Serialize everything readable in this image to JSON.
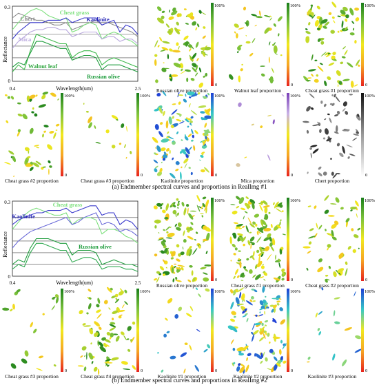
{
  "figure": {
    "caption_a": "(a) Endmember spectral curves and proportions in RealImg #1",
    "caption_b": "(b) Endmember spectral curves and proportions in RealImg #2"
  },
  "chart_data": [
    {
      "type": "line",
      "panel": "a",
      "ylabel": "Reflectance",
      "xlabel": "Wavelength(um)",
      "xlim": [
        0.4,
        2.5
      ],
      "ylim": [
        0,
        0.32
      ],
      "x_ticks": [
        "0.4",
        "2.5"
      ],
      "y_ticks": [
        "0",
        "0.3"
      ],
      "grid": "horizontal",
      "x": [
        0.4,
        0.5,
        0.6,
        0.7,
        0.8,
        0.9,
        1.0,
        1.1,
        1.2,
        1.3,
        1.4,
        1.5,
        1.6,
        1.7,
        1.8,
        1.9,
        2.0,
        2.1,
        2.2,
        2.3,
        2.4,
        2.5
      ],
      "series": [
        {
          "name": "Chert",
          "color": "#8c8c8c",
          "values": [
            0.27,
            0.29,
            0.28,
            0.27,
            0.26,
            0.26,
            0.25,
            0.24,
            0.24,
            0.25,
            0.22,
            0.23,
            0.24,
            0.25,
            0.26,
            0.24,
            0.25,
            0.24,
            0.23,
            0.22,
            0.21,
            0.19
          ]
        },
        {
          "name": "Cheat grass",
          "color": "#7ee07e",
          "values": [
            0.22,
            0.25,
            0.28,
            0.3,
            0.31,
            0.3,
            0.28,
            0.27,
            0.26,
            0.27,
            0.21,
            0.22,
            0.24,
            0.25,
            0.24,
            0.18,
            0.2,
            0.21,
            0.2,
            0.18,
            0.17,
            0.15
          ]
        },
        {
          "name": "Kaolinite",
          "color": "#3a3acc",
          "values": [
            0.18,
            0.21,
            0.23,
            0.25,
            0.25,
            0.25,
            0.26,
            0.26,
            0.26,
            0.27,
            0.25,
            0.26,
            0.27,
            0.27,
            0.27,
            0.24,
            0.25,
            0.26,
            0.21,
            0.24,
            0.23,
            0.2
          ]
        },
        {
          "name": "Mica",
          "color": "#b7a6dd",
          "values": [
            0.14,
            0.17,
            0.19,
            0.21,
            0.22,
            0.22,
            0.23,
            0.23,
            0.22,
            0.22,
            0.19,
            0.2,
            0.21,
            0.21,
            0.21,
            0.18,
            0.19,
            0.19,
            0.17,
            0.18,
            0.18,
            0.16
          ]
        },
        {
          "name": "Walnut leaf",
          "color": "#3cb84a",
          "values": [
            0.04,
            0.07,
            0.05,
            0.13,
            0.2,
            0.19,
            0.18,
            0.17,
            0.16,
            0.16,
            0.1,
            0.12,
            0.13,
            0.13,
            0.12,
            0.07,
            0.09,
            0.1,
            0.09,
            0.08,
            0.07,
            0.06
          ]
        },
        {
          "name": "Russian olive",
          "color": "#1e9c3c",
          "values": [
            0.06,
            0.08,
            0.07,
            0.12,
            0.17,
            0.17,
            0.16,
            0.15,
            0.14,
            0.14,
            0.09,
            0.1,
            0.11,
            0.11,
            0.1,
            0.05,
            0.07,
            0.07,
            0.07,
            0.06,
            0.05,
            0.04
          ]
        }
      ]
    },
    {
      "type": "line",
      "panel": "b",
      "ylabel": "Reflectance",
      "xlabel": "Wavelength(um)",
      "xlim": [
        0.4,
        2.5
      ],
      "ylim": [
        0,
        0.32
      ],
      "x_ticks": [
        "0.4",
        "2.5"
      ],
      "y_ticks": [
        "0",
        "0.3"
      ],
      "grid": "horizontal",
      "x": [
        0.4,
        0.5,
        0.6,
        0.7,
        0.8,
        0.9,
        1.0,
        1.1,
        1.2,
        1.3,
        1.4,
        1.5,
        1.6,
        1.7,
        1.8,
        1.9,
        2.0,
        2.1,
        2.2,
        2.3,
        2.4,
        2.5
      ],
      "series": [
        {
          "name": "Cheat grass",
          "color": "#7ee07e",
          "values": [
            0.2,
            0.23,
            0.26,
            0.28,
            0.29,
            0.28,
            0.27,
            0.26,
            0.26,
            0.27,
            0.22,
            0.24,
            0.25,
            0.25,
            0.24,
            0.18,
            0.2,
            0.2,
            0.19,
            0.17,
            0.16,
            0.14
          ]
        },
        {
          "name": "Kaolinite",
          "color": "#3a3acc",
          "values": [
            0.22,
            0.24,
            0.25,
            0.26,
            0.27,
            0.27,
            0.28,
            0.28,
            0.28,
            0.29,
            0.27,
            0.28,
            0.29,
            0.3,
            0.3,
            0.26,
            0.27,
            0.27,
            0.22,
            0.24,
            0.23,
            0.2
          ]
        },
        {
          "name": "Kaolinite",
          "color": "#6a6ad8",
          "values": [
            0.12,
            0.15,
            0.17,
            0.19,
            0.2,
            0.21,
            0.22,
            0.23,
            0.24,
            0.25,
            0.22,
            0.23,
            0.25,
            0.26,
            0.27,
            0.22,
            0.23,
            0.22,
            0.19,
            0.2,
            0.19,
            0.17
          ]
        },
        {
          "name": "Russian olive",
          "color": "#1e9c3c",
          "values": [
            0.05,
            0.07,
            0.06,
            0.12,
            0.16,
            0.16,
            0.16,
            0.15,
            0.14,
            0.14,
            0.09,
            0.11,
            0.11,
            0.11,
            0.1,
            0.05,
            0.06,
            0.07,
            0.06,
            0.05,
            0.05,
            0.04
          ]
        },
        {
          "name": "Cheat grass",
          "color": "#2fa84f",
          "values": [
            0.03,
            0.05,
            0.04,
            0.1,
            0.14,
            0.14,
            0.13,
            0.12,
            0.11,
            0.11,
            0.06,
            0.07,
            0.08,
            0.08,
            0.07,
            0.03,
            0.04,
            0.04,
            0.04,
            0.03,
            0.03,
            0.02
          ]
        }
      ]
    }
  ],
  "spectra_labels": {
    "a": [
      {
        "text": "Chert",
        "color": "#8c8c8c"
      },
      {
        "text": "Cheat grass",
        "color": "#7ee07e"
      },
      {
        "text": "Kaolinite",
        "color": "#2a2ab8"
      },
      {
        "text": "Mica",
        "color": "#b7a6dd"
      },
      {
        "text": "Walnut leaf",
        "color": "#2da53d"
      },
      {
        "text": "Russian olive",
        "color": "#1e9c3c"
      }
    ],
    "b": [
      {
        "text": "Cheat grass",
        "color": "#7ee07e"
      },
      {
        "text": "Kaolinite",
        "color": "#2a2ab8"
      },
      {
        "text": "Russian olive",
        "color": "#1e9c3c"
      }
    ]
  },
  "proportion_maps": {
    "colorbar_max_label": "100%",
    "colorbar_min_label": "0",
    "a_row1": [
      {
        "label": "Russian olive proportion",
        "top_color": "#1a7f1a",
        "density": 0.3,
        "seed": 11
      },
      {
        "label": "Walnut leaf proportion",
        "top_color": "#1a7f1a",
        "density": 0.14,
        "seed": 23
      },
      {
        "label": "Cheat grass #1 proportion",
        "top_color": "#1a7f1a",
        "density": 0.3,
        "seed": 37
      }
    ],
    "a_row2": [
      {
        "label": "Cheat grass #2 proportion",
        "top_color": "#1a7f1a",
        "density": 0.18,
        "seed": 41
      },
      {
        "label": "Cheat grass #3 proportion",
        "top_color": "#1a7f1a",
        "density": 0.04,
        "seed": 53
      },
      {
        "label": "Kaolinite proportion",
        "top_color": "#1f3fd6",
        "density": 0.45,
        "seed": 61
      },
      {
        "label": "Mica proportion",
        "top_color": "#7a3fb8",
        "density": 0.01,
        "seed": 71
      },
      {
        "label": "Chert proportion",
        "top_color": "#111111",
        "density": 0.2,
        "seed": 83
      }
    ],
    "b_row1": [
      {
        "label": "Russian olive proportion",
        "top_color": "#1a7f1a",
        "density": 0.45,
        "seed": 97
      },
      {
        "label": "Cheat grass #1 proportion",
        "top_color": "#1a7f1a",
        "density": 0.5,
        "seed": 103
      },
      {
        "label": "Cheat grass #2 proportion",
        "top_color": "#1a7f1a",
        "density": 0.18,
        "seed": 109
      }
    ],
    "b_row2": [
      {
        "label": "Cheat grass #3 proportion",
        "top_color": "#1a7f1a",
        "density": 0.05,
        "seed": 127
      },
      {
        "label": "Cheat grass #4 proportion",
        "top_color": "#1a7f1a",
        "density": 0.3,
        "seed": 131
      },
      {
        "label": "Kaolinite #1 proportion",
        "top_color": "#1f3fd6",
        "density": 0.06,
        "seed": 137
      },
      {
        "label": "Kaolinite #2 proportion",
        "top_color": "#1f3fd6",
        "density": 0.45,
        "seed": 149
      },
      {
        "label": "Kaolinite #3 proportion",
        "top_color": "#1f3fd6",
        "density": 0.04,
        "seed": 157
      }
    ]
  }
}
